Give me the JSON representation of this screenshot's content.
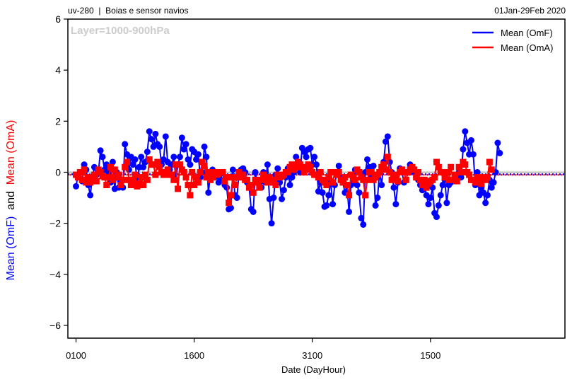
{
  "header": {
    "left": "uv-280  |  Boias e sensor navios",
    "right": "01Jan-29Feb 2020"
  },
  "colors": {
    "omf": "#0000ff",
    "oma": "#ff0000",
    "zero_line": "#bbbbbb",
    "text": "#000000",
    "watermark": "#cccccc"
  },
  "ylabel_parts": {
    "omf": "Mean (OmF)",
    "and": "  and  ",
    "oma": "Mean (OmA)"
  },
  "chart_data": {
    "type": "line",
    "title": "",
    "annotation": "Layer=1000-900hPa",
    "xlabel": "Date (DayHour)",
    "ylabel": "Mean (OmF)  and  Mean (OmA)",
    "ylim": [
      -6.5,
      6
    ],
    "yticks": [
      6,
      4,
      2,
      0,
      -2,
      -4,
      -6
    ],
    "yticklabels": [
      "6",
      "4",
      "2",
      "0",
      "−2",
      "−4",
      "−6"
    ],
    "xlim": [
      -4,
      240
    ],
    "xticks": [
      0,
      58,
      116,
      174
    ],
    "xticklabels": [
      "0100",
      "1600",
      "3100",
      "1500"
    ],
    "legend": {
      "location": "top-right",
      "entries": [
        "Mean (OmF)",
        "Mean (OmA)"
      ]
    },
    "reference_lines": [
      {
        "name": "zero",
        "y": 0,
        "style": "solid"
      },
      {
        "name": "OmF mean",
        "y": -0.08,
        "style": "dotted",
        "series": "Mean (OmF)"
      },
      {
        "name": "OmA mean",
        "y": -0.1,
        "style": "dotted",
        "series": "Mean (OmA)"
      }
    ],
    "series": [
      {
        "name": "Mean (OmF)",
        "marker": "circle",
        "values": [
          -0.55,
          -0.1,
          0.0,
          -0.35,
          0.3,
          0.1,
          -0.5,
          -0.9,
          -0.2,
          0.2,
          -0.1,
          0.0,
          0.85,
          0.6,
          0.1,
          0.3,
          0.0,
          -0.4,
          0.4,
          -0.65,
          0.0,
          -0.6,
          -0.3,
          -0.6,
          1.1,
          0.7,
          0.1,
          0.6,
          0.3,
          0.5,
          -0.5,
          0.2,
          0.6,
          0.2,
          0.4,
          0.8,
          1.6,
          1.3,
          1.0,
          1.5,
          1.1,
          1.0,
          0.3,
          0.5,
          1.4,
          0.4,
          0.1,
          0.3,
          0.6,
          -0.3,
          0.3,
          0.6,
          1.35,
          0.9,
          1.1,
          0.5,
          0.3,
          0.9,
          0.8,
          0.5,
          0.7,
          -0.2,
          0.0,
          1.0,
          0.6,
          -0.8,
          0.0,
          0.1,
          -0.2,
          0.0,
          -0.4,
          -0.3,
          0.0,
          -0.5,
          -0.6,
          -1.45,
          -1.4,
          0.1,
          -0.9,
          -1.0,
          0.0,
          0.1,
          0.15,
          0.0,
          -0.4,
          -0.6,
          -1.45,
          -1.55,
          0.0,
          -0.4,
          -0.5,
          -0.6,
          0.0,
          -0.4,
          0.3,
          -1.05,
          -2.0,
          -1.0,
          -0.1,
          0.15,
          -0.4,
          -1.05,
          -0.7,
          -0.2,
          0.15,
          -0.5,
          -0.2,
          0.0,
          0.6,
          0.4,
          0.0,
          0.95,
          0.8,
          0.6,
          0.9,
          0.95,
          0.3,
          0.6,
          0.3,
          -0.75,
          -0.4,
          -0.8,
          -1.35,
          -1.3,
          -0.9,
          -0.35,
          -1.25,
          -0.5,
          0.0,
          0.25,
          -0.2,
          -0.4,
          -0.8,
          -0.5,
          -1.55,
          -0.5,
          -0.4,
          0.1,
          -0.5,
          -0.8,
          -1.8,
          -2.05,
          0.0,
          0.5,
          0.2,
          -0.2,
          0.25,
          -1.3,
          -1.0,
          0.0,
          -0.5,
          0.4,
          1.2,
          1.4,
          0.4,
          0.0,
          -0.6,
          -1.25,
          -0.4,
          0.15,
          0.0,
          -0.4,
          -0.3,
          0.0,
          0.3,
          0.2,
          0.0,
          -0.2,
          -0.3,
          -0.5,
          -0.7,
          -0.5,
          -0.9,
          -1.25,
          -1.0,
          -0.6,
          -1.6,
          -1.75,
          -1.3,
          -0.9,
          -0.5,
          -0.3,
          -1.2,
          -0.5,
          -0.4,
          -0.3,
          -0.2,
          -0.25,
          0.0,
          -0.2,
          0.9,
          1.6,
          1.15,
          0.7,
          1.25,
          0.7,
          -0.5,
          0.0,
          -0.9,
          -0.6,
          -0.8,
          -1.2,
          -0.9,
          -0.3,
          -0.6,
          -0.4,
          0.0,
          1.15,
          0.75
        ]
      },
      {
        "name": "Mean (OmA)",
        "marker": "square",
        "values": [
          -0.1,
          -0.2,
          0.0,
          -0.3,
          0.1,
          -0.4,
          -0.2,
          -0.4,
          -0.3,
          -0.1,
          -0.35,
          0.1,
          0.0,
          -0.15,
          -0.2,
          -0.5,
          -0.2,
          0.2,
          -0.3,
          0.1,
          -0.2,
          -0.1,
          -0.5,
          -0.3,
          0.2,
          0.4,
          -0.3,
          -0.5,
          -0.3,
          -0.1,
          -0.55,
          -0.45,
          -0.2,
          -0.5,
          -0.1,
          -0.3,
          0.5,
          0.3,
          0.3,
          -0.1,
          0.4,
          0.2,
          0.0,
          -0.1,
          0.0,
          0.1,
          -0.1,
          -0.1,
          -0.3,
          0.3,
          -0.65,
          0.3,
          0.1,
          0.0,
          -0.2,
          -0.5,
          -0.9,
          0.0,
          -0.5,
          -0.2,
          -0.4,
          0.0,
          0.4,
          0.25,
          -0.2,
          0.0,
          -0.3,
          -0.2,
          0.0,
          -0.1,
          -0.05,
          0.0,
          0.0,
          -0.35,
          -0.2,
          -1.2,
          -0.9,
          -0.2,
          -0.5,
          -0.2,
          0.0,
          -0.2,
          -0.1,
          -0.3,
          -0.3,
          -0.6,
          -0.5,
          -0.8,
          -0.3,
          -0.4,
          -0.6,
          -0.3,
          -0.1,
          -0.3,
          -0.4,
          -0.2,
          -0.4,
          -0.3,
          -0.5,
          -0.1,
          -0.2,
          -0.15,
          -0.1,
          0.0,
          0.0,
          0.2,
          0.3,
          0.1,
          0.2,
          0.4,
          0.3,
          0.2,
          0.0,
          0.1,
          0.3,
          0.2,
          0.0,
          -0.1,
          -0.1,
          -0.2,
          0.0,
          -0.3,
          -0.4,
          -0.5,
          -0.2,
          0.0,
          -0.4,
          0.0,
          -0.1,
          0.0,
          -0.3,
          -0.4,
          -0.2,
          -0.5,
          -0.9,
          -0.1,
          -0.2,
          -0.3,
          0.1,
          0.0,
          -0.2,
          -0.3,
          -0.9,
          -0.3,
          0.0,
          0.0,
          -0.3,
          -0.2,
          -0.1,
          0.0,
          0.2,
          0.3,
          0.1,
          0.6,
          0.0,
          -0.3,
          -0.1,
          -0.25,
          -0.35,
          0.0,
          0.1,
          0.0,
          -0.3,
          0.0,
          0.1,
          0.2,
          0.1,
          -0.2,
          0.0,
          -0.3,
          -0.5,
          -0.3,
          -0.6,
          -0.45,
          -0.35,
          -0.3,
          -0.2,
          0.4,
          0.2,
          0.0,
          0.0,
          -0.2,
          0.0,
          -0.3,
          0.2,
          -0.3,
          -0.1,
          -0.35,
          0.2,
          0.0,
          0.4,
          0.3,
          0.0,
          -0.1,
          -0.3,
          -0.3,
          -0.4,
          -0.2,
          -0.3,
          -0.45,
          -0.2,
          -0.3,
          -0.2,
          0.4,
          0.1
        ]
      }
    ]
  }
}
